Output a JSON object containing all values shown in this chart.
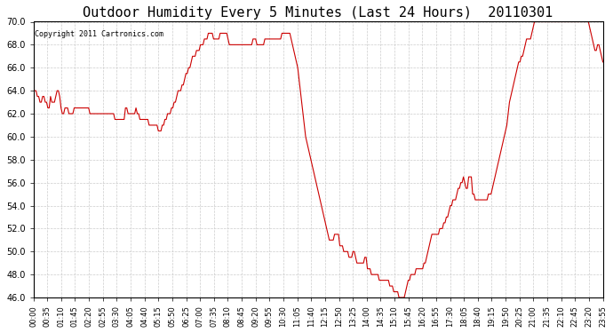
{
  "title": "Outdoor Humidity Every 5 Minutes (Last 24 Hours)  20110301",
  "copyright": "Copyright 2011 Cartronics.com",
  "line_color": "#cc0000",
  "bg_color": "#ffffff",
  "grid_color": "#cccccc",
  "ylim": [
    46.0,
    70.0
  ],
  "yticks": [
    46.0,
    48.0,
    50.0,
    52.0,
    54.0,
    56.0,
    58.0,
    60.0,
    62.0,
    64.0,
    66.0,
    68.0,
    70.0
  ],
  "xtick_labels": [
    "00:00",
    "00:35",
    "01:10",
    "01:45",
    "02:20",
    "02:55",
    "03:30",
    "04:05",
    "04:40",
    "05:15",
    "05:50",
    "06:25",
    "07:00",
    "07:35",
    "08:10",
    "08:45",
    "09:20",
    "09:55",
    "10:30",
    "11:05",
    "11:40",
    "12:15",
    "12:50",
    "13:25",
    "14:00",
    "14:35",
    "15:10",
    "15:45",
    "16:20",
    "16:55",
    "17:30",
    "18:05",
    "18:40",
    "19:15",
    "19:50",
    "20:25",
    "21:00",
    "21:35",
    "22:10",
    "22:45",
    "23:20",
    "23:55"
  ],
  "humidity_values": [
    64.0,
    64.0,
    64.0,
    63.5,
    63.5,
    63.0,
    63.0,
    63.5,
    63.5,
    63.0,
    63.0,
    62.5,
    62.5,
    63.5,
    63.0,
    63.0,
    63.0,
    63.5,
    64.0,
    64.0,
    63.5,
    62.5,
    62.0,
    62.0,
    62.5,
    62.5,
    62.5,
    62.0,
    62.0,
    62.0,
    62.0,
    62.5,
    62.5,
    62.5,
    62.5,
    62.5,
    62.5,
    62.5,
    62.5,
    62.5,
    62.5,
    62.5,
    62.5,
    62.0,
    62.0,
    62.0,
    62.0,
    62.0,
    62.0,
    62.0,
    62.0,
    62.0,
    62.0,
    62.0,
    62.0,
    62.0,
    62.0,
    62.0,
    62.0,
    62.0,
    62.0,
    62.0,
    61.5,
    61.5,
    61.5,
    61.5,
    61.5,
    61.5,
    61.5,
    61.5,
    62.5,
    62.5,
    62.0,
    62.0,
    62.0,
    62.0,
    62.0,
    62.0,
    62.5,
    62.0,
    62.0,
    61.5,
    61.5,
    61.5,
    61.5,
    61.5,
    61.5,
    61.5,
    61.0,
    61.0,
    61.0,
    61.0,
    61.0,
    61.0,
    61.0,
    60.5,
    60.5,
    60.5,
    61.0,
    61.0,
    61.5,
    61.5,
    62.0,
    62.0,
    62.0,
    62.5,
    62.5,
    63.0,
    63.0,
    63.5,
    64.0,
    64.0,
    64.0,
    64.5,
    64.5,
    65.0,
    65.5,
    65.5,
    66.0,
    66.0,
    66.5,
    67.0,
    67.0,
    67.0,
    67.5,
    67.5,
    67.5,
    68.0,
    68.0,
    68.0,
    68.5,
    68.5,
    68.5,
    69.0,
    69.0,
    69.0,
    69.0,
    68.5,
    68.5,
    68.5,
    68.5,
    68.5,
    69.0,
    69.0,
    69.0,
    69.0,
    69.0,
    69.0,
    68.5,
    68.0,
    68.0,
    68.0,
    68.0,
    68.0,
    68.0,
    68.0,
    68.0,
    68.0,
    68.0,
    68.0,
    68.0,
    68.0,
    68.0,
    68.0,
    68.0,
    68.0,
    68.0,
    68.5,
    68.5,
    68.5,
    68.0,
    68.0,
    68.0,
    68.0,
    68.0,
    68.0,
    68.5,
    68.5,
    68.5,
    68.5,
    68.5,
    68.5,
    68.5,
    68.5,
    68.5,
    68.5,
    68.5,
    68.5,
    68.5,
    69.0,
    69.0,
    69.0,
    69.0,
    69.0,
    69.0,
    69.0,
    68.5,
    68.0,
    67.5,
    67.0,
    66.5,
    66.0,
    65.0,
    64.0,
    63.0,
    62.0,
    61.0,
    60.0,
    59.5,
    59.0,
    58.5,
    58.0,
    57.5,
    57.0,
    56.5,
    56.0,
    55.5,
    55.0,
    54.5,
    54.0,
    53.5,
    53.0,
    52.5,
    52.0,
    51.5,
    51.0,
    51.0,
    51.0,
    51.0,
    51.5,
    51.5,
    51.5,
    51.5,
    50.5,
    50.5,
    50.5,
    50.0,
    50.0,
    50.0,
    50.0,
    49.5,
    49.5,
    49.5,
    50.0,
    50.0,
    49.5,
    49.0,
    49.0,
    49.0,
    49.0,
    49.0,
    49.0,
    49.5,
    49.5,
    48.5,
    48.5,
    48.5,
    48.0,
    48.0,
    48.0,
    48.0,
    48.0,
    48.0,
    47.5,
    47.5,
    47.5,
    47.5,
    47.5,
    47.5,
    47.5,
    47.5,
    47.0,
    47.0,
    47.0,
    46.5,
    46.5,
    46.5,
    46.5,
    46.0,
    46.0,
    46.0,
    46.0,
    46.0,
    46.5,
    47.0,
    47.5,
    47.5,
    48.0,
    48.0,
    48.0,
    48.0,
    48.5,
    48.5,
    48.5,
    48.5,
    48.5,
    48.5,
    49.0,
    49.0,
    49.5,
    50.0,
    50.5,
    51.0,
    51.5,
    51.5,
    51.5,
    51.5,
    51.5,
    51.5,
    52.0,
    52.0,
    52.0,
    52.5,
    52.5,
    53.0,
    53.0,
    53.5,
    54.0,
    54.0,
    54.5,
    54.5,
    54.5,
    55.0,
    55.5,
    55.5,
    56.0,
    56.0,
    56.5,
    56.0,
    55.5,
    55.5,
    56.5,
    56.5,
    56.5,
    55.0,
    55.0,
    54.5,
    54.5,
    54.5,
    54.5,
    54.5,
    54.5,
    54.5,
    54.5,
    54.5,
    54.5,
    55.0,
    55.0,
    55.0,
    55.5,
    56.0,
    56.5,
    57.0,
    57.5,
    58.0,
    58.5,
    59.0,
    59.5,
    60.0,
    60.5,
    61.0,
    62.0,
    63.0,
    63.5,
    64.0,
    64.5,
    65.0,
    65.5,
    66.0,
    66.5,
    66.5,
    67.0,
    67.0,
    67.5,
    68.0,
    68.5,
    68.5,
    68.5,
    68.5,
    69.0,
    69.5,
    70.0,
    70.0,
    70.0,
    70.0,
    70.0,
    70.0,
    70.0,
    70.0,
    70.0,
    70.0,
    70.0,
    70.0,
    70.0,
    70.0,
    70.0,
    70.0,
    70.0,
    70.0,
    70.0,
    70.0,
    70.0,
    70.0,
    70.0,
    70.0,
    70.0,
    70.0,
    70.0,
    70.0,
    70.0,
    70.0,
    70.0,
    70.0,
    70.0,
    70.0,
    70.0,
    70.0,
    70.0,
    70.0,
    70.0,
    70.0,
    70.0,
    70.0,
    69.5,
    69.0,
    68.5,
    68.0,
    67.5,
    67.5,
    68.0,
    68.0,
    67.5,
    67.0,
    66.5
  ]
}
